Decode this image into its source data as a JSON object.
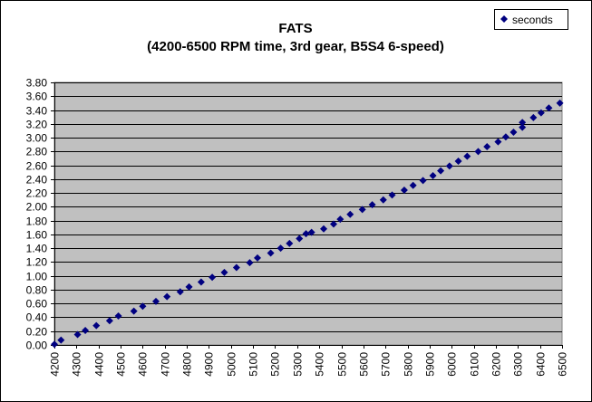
{
  "chart_data": {
    "type": "scatter",
    "title": "FATS",
    "subtitle": "(4200-6500 RPM time, 3rd gear, B5S4 6-speed)",
    "xlabel": "",
    "ylabel": "",
    "xlim": [
      4200,
      6500
    ],
    "ylim": [
      0,
      3.8
    ],
    "xticks": [
      4200,
      4300,
      4400,
      4500,
      4600,
      4700,
      4800,
      4900,
      5000,
      5100,
      5200,
      5300,
      5400,
      5500,
      5600,
      5700,
      5800,
      5900,
      6000,
      6100,
      6200,
      6300,
      6400,
      6500
    ],
    "yticks": [
      "0.00",
      "0.20",
      "0.40",
      "0.60",
      "0.80",
      "1.00",
      "1.20",
      "1.40",
      "1.60",
      "1.80",
      "2.00",
      "2.20",
      "2.40",
      "2.60",
      "2.80",
      "3.00",
      "3.20",
      "3.40",
      "3.60",
      "3.80"
    ],
    "grid": true,
    "legend_position": "top-right",
    "marker_color": "#000080",
    "plot_background": "#c0c0c0",
    "series": [
      {
        "name": "seconds",
        "x": [
          4200,
          4230,
          4305,
          4340,
          4390,
          4450,
          4490,
          4560,
          4600,
          4660,
          4710,
          4770,
          4810,
          4865,
          4915,
          4970,
          5025,
          5085,
          5120,
          5180,
          5225,
          5265,
          5310,
          5340,
          5365,
          5420,
          5465,
          5495,
          5540,
          5595,
          5640,
          5690,
          5730,
          5785,
          5825,
          5870,
          5915,
          5950,
          5990,
          6030,
          6070,
          6120,
          6160,
          6210,
          6245,
          6280,
          6320,
          6320,
          6370,
          6405,
          6440,
          6490
        ],
        "values": [
          0.01,
          0.07,
          0.15,
          0.21,
          0.28,
          0.35,
          0.42,
          0.49,
          0.56,
          0.63,
          0.7,
          0.77,
          0.84,
          0.91,
          0.98,
          1.05,
          1.12,
          1.19,
          1.26,
          1.33,
          1.4,
          1.47,
          1.54,
          1.61,
          1.63,
          1.68,
          1.75,
          1.82,
          1.89,
          1.96,
          2.03,
          2.1,
          2.17,
          2.24,
          2.31,
          2.38,
          2.45,
          2.52,
          2.59,
          2.66,
          2.73,
          2.8,
          2.87,
          2.94,
          3.01,
          3.08,
          3.15,
          3.22,
          3.29,
          3.36,
          3.43,
          3.5
        ]
      }
    ]
  }
}
